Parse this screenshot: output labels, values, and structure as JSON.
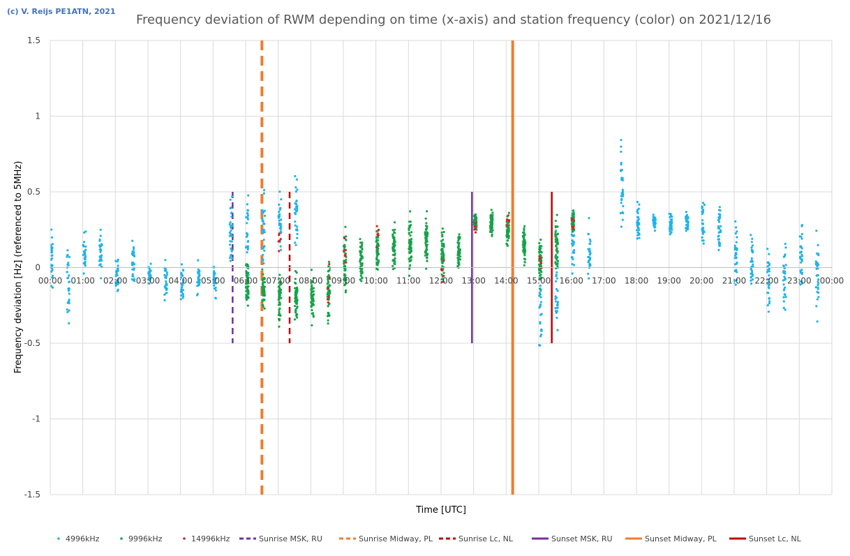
{
  "copyright": "(c) V. Reijs  PE1ATN, 2021",
  "chart_data": {
    "type": "scatter",
    "title": "Frequency deviation of RWM depending on time (x-axis) and station frequency (color) on 2021/12/16",
    "xlabel": "Time [UTC]",
    "ylabel": "Frequency deviation [Hz] (referenced to 5MHz)",
    "xlim": [
      0,
      24
    ],
    "ylim": [
      -1.5,
      1.5
    ],
    "yticks": [
      1.5,
      1,
      0.5,
      0,
      -0.5,
      -1,
      -1.5
    ],
    "ytick_labels": [
      "1.5",
      "1",
      "0.5",
      "0",
      "-0.5",
      "-1",
      "-1.5"
    ],
    "xtick_labels": [
      "00:00",
      "01:00",
      "02:00",
      "03:00",
      "04:00",
      "05:00",
      "06:00",
      "07:00",
      "08:00",
      "09:00",
      "10:00",
      "11:00",
      "12:00",
      "13:00",
      "14:00",
      "15:00",
      "16:00",
      "17:00",
      "18:00",
      "19:00",
      "20:00",
      "21:00",
      "22:00",
      "23:00",
      "00:00"
    ],
    "grid": true,
    "legend_position": "bottom",
    "series": [
      {
        "name": "4996kHz",
        "color": "#1fb4e8",
        "clusters": [
          {
            "t": 0.05,
            "c": 0.03,
            "s": 0.16
          },
          {
            "t": 0.55,
            "c": -0.1,
            "s": 0.2
          },
          {
            "t": 1.05,
            "c": 0.1,
            "s": 0.1
          },
          {
            "t": 1.55,
            "c": 0.08,
            "s": 0.12
          },
          {
            "t": 2.05,
            "c": -0.05,
            "s": 0.1
          },
          {
            "t": 2.55,
            "c": 0.05,
            "s": 0.1
          },
          {
            "t": 3.05,
            "c": -0.05,
            "s": 0.06
          },
          {
            "t": 3.55,
            "c": -0.08,
            "s": 0.1
          },
          {
            "t": 4.05,
            "c": -0.1,
            "s": 0.12
          },
          {
            "t": 4.55,
            "c": -0.08,
            "s": 0.08
          },
          {
            "t": 5.05,
            "c": -0.08,
            "s": 0.08
          },
          {
            "t": 5.55,
            "c": 0.25,
            "s": 0.2
          },
          {
            "t": 6.05,
            "c": 0.2,
            "s": 0.3
          },
          {
            "t": 6.55,
            "c": 0.25,
            "s": 0.22
          },
          {
            "t": 7.05,
            "c": 0.3,
            "s": 0.15
          },
          {
            "t": 7.55,
            "c": 0.35,
            "s": 0.2
          },
          {
            "t": 15.05,
            "c": -0.3,
            "s": 0.25
          },
          {
            "t": 15.55,
            "c": -0.2,
            "s": 0.3
          },
          {
            "t": 16.05,
            "c": 0.15,
            "s": 0.15
          },
          {
            "t": 16.55,
            "c": 0.1,
            "s": 0.15
          },
          {
            "t": 17.55,
            "c": 0.55,
            "s": 0.25
          },
          {
            "t": 18.05,
            "c": 0.3,
            "s": 0.1
          },
          {
            "t": 18.55,
            "c": 0.3,
            "s": 0.04
          },
          {
            "t": 19.05,
            "c": 0.28,
            "s": 0.05
          },
          {
            "t": 19.55,
            "c": 0.3,
            "s": 0.05
          },
          {
            "t": 20.05,
            "c": 0.3,
            "s": 0.12
          },
          {
            "t": 20.55,
            "c": 0.25,
            "s": 0.12
          },
          {
            "t": 21.05,
            "c": 0.1,
            "s": 0.15
          },
          {
            "t": 21.55,
            "c": 0.05,
            "s": 0.15
          },
          {
            "t": 22.05,
            "c": -0.05,
            "s": 0.2
          },
          {
            "t": 22.55,
            "c": -0.1,
            "s": 0.25
          },
          {
            "t": 23.05,
            "c": 0.1,
            "s": 0.2
          },
          {
            "t": 23.55,
            "c": -0.05,
            "s": 0.25
          }
        ]
      },
      {
        "name": "9996kHz",
        "color": "#16a34a",
        "clusters": [
          {
            "t": 6.05,
            "c": -0.1,
            "s": 0.12
          },
          {
            "t": 6.55,
            "c": -0.15,
            "s": 0.1
          },
          {
            "t": 7.05,
            "c": -0.2,
            "s": 0.12
          },
          {
            "t": 7.55,
            "c": -0.2,
            "s": 0.1
          },
          {
            "t": 8.05,
            "c": -0.2,
            "s": 0.12
          },
          {
            "t": 8.55,
            "c": -0.15,
            "s": 0.15
          },
          {
            "t": 9.05,
            "c": 0.05,
            "s": 0.15
          },
          {
            "t": 9.55,
            "c": 0.05,
            "s": 0.12
          },
          {
            "t": 10.05,
            "c": 0.1,
            "s": 0.12
          },
          {
            "t": 10.55,
            "c": 0.12,
            "s": 0.12
          },
          {
            "t": 11.05,
            "c": 0.15,
            "s": 0.13
          },
          {
            "t": 11.55,
            "c": 0.15,
            "s": 0.13
          },
          {
            "t": 12.05,
            "c": 0.1,
            "s": 0.13
          },
          {
            "t": 12.55,
            "c": 0.1,
            "s": 0.1
          },
          {
            "t": 13.05,
            "c": 0.3,
            "s": 0.05
          },
          {
            "t": 13.55,
            "c": 0.3,
            "s": 0.06
          },
          {
            "t": 14.05,
            "c": 0.25,
            "s": 0.08
          },
          {
            "t": 14.55,
            "c": 0.15,
            "s": 0.1
          },
          {
            "t": 15.05,
            "c": 0.05,
            "s": 0.12
          },
          {
            "t": 15.55,
            "c": 0.15,
            "s": 0.12
          },
          {
            "t": 16.05,
            "c": 0.3,
            "s": 0.05
          }
        ]
      },
      {
        "name": "14996kHz",
        "color": "#e02020",
        "clusters": [
          {
            "t": 7.05,
            "c": 0.2,
            "s": 0.1
          },
          {
            "t": 8.55,
            "c": -0.15,
            "s": 0.1
          },
          {
            "t": 9.05,
            "c": 0.1,
            "s": 0.1
          },
          {
            "t": 10.05,
            "c": 0.2,
            "s": 0.1
          },
          {
            "t": 12.05,
            "c": 0.0,
            "s": 0.1
          },
          {
            "t": 13.05,
            "c": 0.25,
            "s": 0.05
          },
          {
            "t": 14.05,
            "c": 0.3,
            "s": 0.05
          },
          {
            "t": 15.05,
            "c": 0.05,
            "s": 0.05
          },
          {
            "t": 16.05,
            "c": 0.3,
            "s": 0.05
          }
        ]
      }
    ],
    "markers": [
      {
        "name": "Sunrise MSK, RU",
        "time": 5.6,
        "ymin": -0.5,
        "ymax": 0.5,
        "color": "#7030a0",
        "style": "dashed"
      },
      {
        "name": "Sunrise Midway, PL",
        "time": 6.5,
        "ymin": -1.5,
        "ymax": 1.5,
        "color": "#ed7d31",
        "style": "dashed"
      },
      {
        "name": "Sunrise Lc, NL",
        "time": 7.35,
        "ymin": -0.5,
        "ymax": 0.5,
        "color": "#c00000",
        "style": "dashed"
      },
      {
        "name": "Sunset MSK, RU",
        "time": 12.95,
        "ymin": -0.5,
        "ymax": 0.5,
        "color": "#7030a0",
        "style": "solid"
      },
      {
        "name": "Sunset Midway, PL",
        "time": 14.2,
        "ymin": -1.5,
        "ymax": 1.5,
        "color": "#ed7d31",
        "style": "solid"
      },
      {
        "name": "Sunset Lc, NL",
        "time": 15.4,
        "ymin": -0.5,
        "ymax": 0.5,
        "color": "#c00000",
        "style": "solid"
      }
    ],
    "legend": [
      {
        "label": "4996kHz",
        "kind": "dot",
        "color": "#1fb4e8"
      },
      {
        "label": "9996kHz",
        "kind": "dot",
        "color": "#16a34a"
      },
      {
        "label": "14996kHz",
        "kind": "dot",
        "color": "#e02020"
      },
      {
        "label": "Sunrise MSK, RU",
        "kind": "dashed",
        "color": "#7030a0"
      },
      {
        "label": "Sunrise Midway, PL",
        "kind": "dashed",
        "color": "#ed7d31"
      },
      {
        "label": "Sunrise Lc, NL",
        "kind": "dashed",
        "color": "#c00000"
      },
      {
        "label": "Sunset MSK, RU",
        "kind": "solid",
        "color": "#7030a0"
      },
      {
        "label": "Sunset Midway, PL",
        "kind": "solid",
        "color": "#ed7d31"
      },
      {
        "label": "Sunset Lc, NL",
        "kind": "solid",
        "color": "#c00000"
      }
    ]
  }
}
